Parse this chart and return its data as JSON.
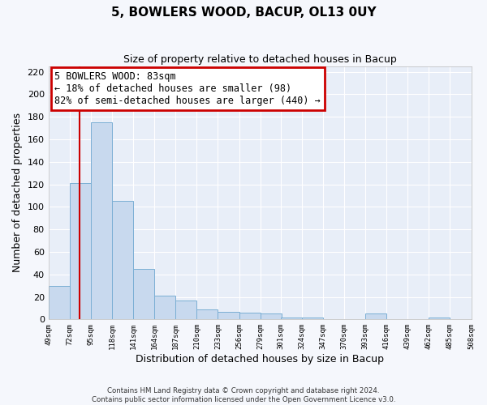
{
  "title": "5, BOWLERS WOOD, BACUP, OL13 0UY",
  "subtitle": "Size of property relative to detached houses in Bacup",
  "xlabel": "Distribution of detached houses by size in Bacup",
  "ylabel": "Number of detached properties",
  "bar_color": "#c8d9ee",
  "bar_edge_color": "#7bafd4",
  "background_color": "#e8eef8",
  "grid_color": "#ffffff",
  "fig_background": "#f5f7fc",
  "bins": [
    49,
    72,
    95,
    118,
    141,
    164,
    187,
    210,
    233,
    256,
    279,
    301,
    324,
    347,
    370,
    393,
    416,
    439,
    462,
    485,
    508
  ],
  "counts": [
    30,
    121,
    175,
    105,
    45,
    21,
    17,
    9,
    7,
    6,
    5,
    2,
    2,
    0,
    0,
    5,
    0,
    0,
    2,
    0
  ],
  "tick_labels": [
    "49sqm",
    "72sqm",
    "95sqm",
    "118sqm",
    "141sqm",
    "164sqm",
    "187sqm",
    "210sqm",
    "233sqm",
    "256sqm",
    "279sqm",
    "301sqm",
    "324sqm",
    "347sqm",
    "370sqm",
    "393sqm",
    "416sqm",
    "439sqm",
    "462sqm",
    "485sqm",
    "508sqm"
  ],
  "ylim": [
    0,
    225
  ],
  "yticks": [
    0,
    20,
    40,
    60,
    80,
    100,
    120,
    140,
    160,
    180,
    200,
    220
  ],
  "vline_x": 83,
  "vline_color": "#cc0000",
  "annotation_title": "5 BOWLERS WOOD: 83sqm",
  "annotation_line1": "← 18% of detached houses are smaller (98)",
  "annotation_line2": "82% of semi-detached houses are larger (440) →",
  "annotation_box_color": "#ffffff",
  "annotation_box_edge": "#cc0000",
  "footer_line1": "Contains HM Land Registry data © Crown copyright and database right 2024.",
  "footer_line2": "Contains public sector information licensed under the Open Government Licence v3.0."
}
